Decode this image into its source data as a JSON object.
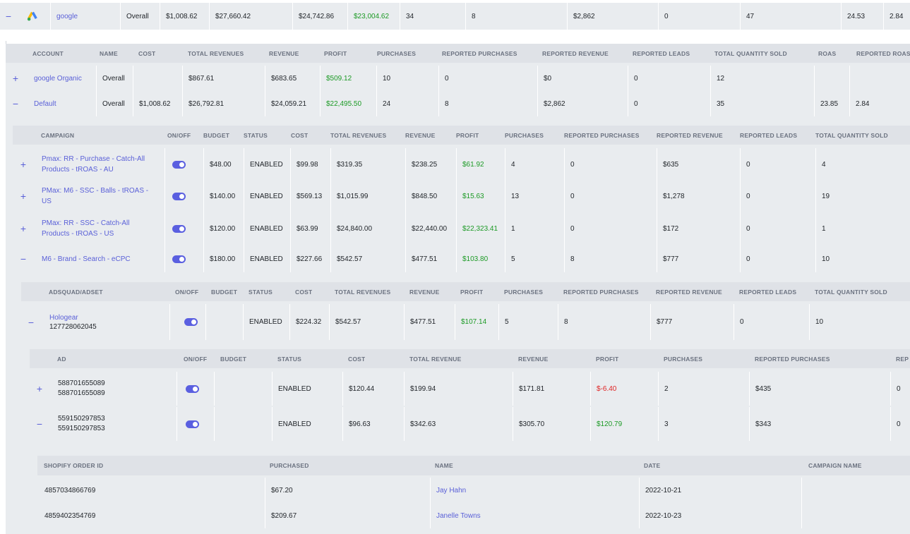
{
  "top": {
    "expander": "−",
    "name": "google",
    "scope": "Overall",
    "cost": "$1,008.62",
    "total_revenues": "$27,660.42",
    "revenue": "$24,742.86",
    "profit": "$23,004.62",
    "purchases": "34",
    "reported_purchases": "8",
    "reported_revenue": "$2,862",
    "reported_leads": "0",
    "total_quantity_sold": "47",
    "roas": "24.53",
    "reported_roas": "2.84"
  },
  "accounts": {
    "headers": [
      "ACCOUNT",
      "NAME",
      "COST",
      "TOTAL REVENUES",
      "REVENUE",
      "PROFIT",
      "PURCHASES",
      "REPORTED PURCHASES",
      "REPORTED REVENUE",
      "REPORTED LEADS",
      "TOTAL QUANTITY SOLD",
      "ROAS",
      "REPORTED ROAS"
    ],
    "rows": [
      {
        "expander": "+",
        "account": "google Organic",
        "name": "Overall",
        "cost": "",
        "total_revenues": "$867.61",
        "revenue": "$683.65",
        "profit": "$509.12",
        "purchases": "10",
        "reported_purchases": "0",
        "reported_revenue": "$0",
        "reported_leads": "0",
        "total_quantity_sold": "12",
        "roas": "",
        "reported_roas": ""
      },
      {
        "expander": "−",
        "account": "Default",
        "name": "Overall",
        "cost": "$1,008.62",
        "total_revenues": "$26,792.81",
        "revenue": "$24,059.21",
        "profit": "$22,495.50",
        "purchases": "24",
        "reported_purchases": "8",
        "reported_revenue": "$2,862",
        "reported_leads": "0",
        "total_quantity_sold": "35",
        "roas": "23.85",
        "reported_roas": "2.84"
      }
    ]
  },
  "campaigns": {
    "headers": [
      "CAMPAIGN",
      "ON/OFF",
      "BUDGET",
      "STATUS",
      "COST",
      "TOTAL REVENUES",
      "REVENUE",
      "PROFIT",
      "PURCHASES",
      "REPORTED PURCHASES",
      "REPORTED REVENUE",
      "REPORTED LEADS",
      "TOTAL QUANTITY SOLD"
    ],
    "rows": [
      {
        "expander": "+",
        "campaign": "Pmax: RR - Purchase - Catch-All Products - tROAS - AU",
        "budget": "$48.00",
        "status": "ENABLED",
        "cost": "$99.98",
        "total_revenues": "$319.35",
        "revenue": "$238.25",
        "profit": "$61.92",
        "purchases": "4",
        "reported_purchases": "0",
        "reported_revenue": "$635",
        "reported_leads": "0",
        "total_quantity_sold": "4"
      },
      {
        "expander": "+",
        "campaign": "PMax: M6 - SSC - Balls - tROAS - US",
        "budget": "$140.00",
        "status": "ENABLED",
        "cost": "$569.13",
        "total_revenues": "$1,015.99",
        "revenue": "$848.50",
        "profit": "$15.63",
        "purchases": "13",
        "reported_purchases": "0",
        "reported_revenue": "$1,278",
        "reported_leads": "0",
        "total_quantity_sold": "19"
      },
      {
        "expander": "+",
        "campaign": "PMax: RR - SSC - Catch-All Products - tROAS - US",
        "budget": "$120.00",
        "status": "ENABLED",
        "cost": "$63.99",
        "total_revenues": "$24,840.00",
        "revenue": "$22,440.00",
        "profit": "$22,323.41",
        "purchases": "1",
        "reported_purchases": "0",
        "reported_revenue": "$172",
        "reported_leads": "0",
        "total_quantity_sold": "1"
      },
      {
        "expander": "−",
        "campaign": "M6 - Brand - Search - eCPC",
        "budget": "$180.00",
        "status": "ENABLED",
        "cost": "$227.66",
        "total_revenues": "$542.57",
        "revenue": "$477.51",
        "profit": "$103.80",
        "purchases": "5",
        "reported_purchases": "8",
        "reported_revenue": "$777",
        "reported_leads": "0",
        "total_quantity_sold": "10"
      }
    ]
  },
  "adsquads": {
    "headers": [
      "ADSQUAD/ADSET",
      "ON/OFF",
      "BUDGET",
      "STATUS",
      "COST",
      "TOTAL REVENUES",
      "REVENUE",
      "PROFIT",
      "PURCHASES",
      "REPORTED PURCHASES",
      "REPORTED REVENUE",
      "REPORTED LEADS",
      "TOTAL QUANTITY SOLD"
    ],
    "rows": [
      {
        "expander": "−",
        "name": "Hologear",
        "id": "127728062045",
        "budget": "",
        "status": "ENABLED",
        "cost": "$224.32",
        "total_revenues": "$542.57",
        "revenue": "$477.51",
        "profit": "$107.14",
        "purchases": "5",
        "reported_purchases": "8",
        "reported_revenue": "$777",
        "reported_leads": "0",
        "total_quantity_sold": "10"
      }
    ]
  },
  "ads": {
    "headers": [
      "AD",
      "ON/OFF",
      "BUDGET",
      "STATUS",
      "COST",
      "TOTAL REVENUE",
      "REVENUE",
      "PROFIT",
      "PURCHASES",
      "REPORTED PURCHASES",
      "REP"
    ],
    "rows": [
      {
        "expander": "+",
        "line1": "588701655089",
        "line2": "588701655089",
        "budget": "",
        "status": "ENABLED",
        "cost": "$120.44",
        "total_revenue": "$199.94",
        "revenue": "$171.81",
        "profit": "$-6.40",
        "purchases": "2",
        "reported_purchases": "$435",
        "rep": "0"
      },
      {
        "expander": "−",
        "line1": "559150297853",
        "line2": "559150297853",
        "budget": "",
        "status": "ENABLED",
        "cost": "$96.63",
        "total_revenue": "$342.63",
        "revenue": "$305.70",
        "profit": "$120.79",
        "purchases": "3",
        "reported_purchases": "$343",
        "rep": "0"
      }
    ]
  },
  "orders": {
    "headers": [
      "SHOPIFY ORDER ID",
      "PURCHASED",
      "NAME",
      "DATE",
      "CAMPAIGN NAME"
    ],
    "rows": [
      {
        "order_id": "4857034866769",
        "purchased": "$67.20",
        "name": "Jay Hahn",
        "date": "2022-10-21",
        "campaign_name": ""
      },
      {
        "order_id": "4859402354769",
        "purchased": "$209.67",
        "name": "Janelle Towns",
        "date": "2022-10-23",
        "campaign_name": ""
      }
    ]
  }
}
